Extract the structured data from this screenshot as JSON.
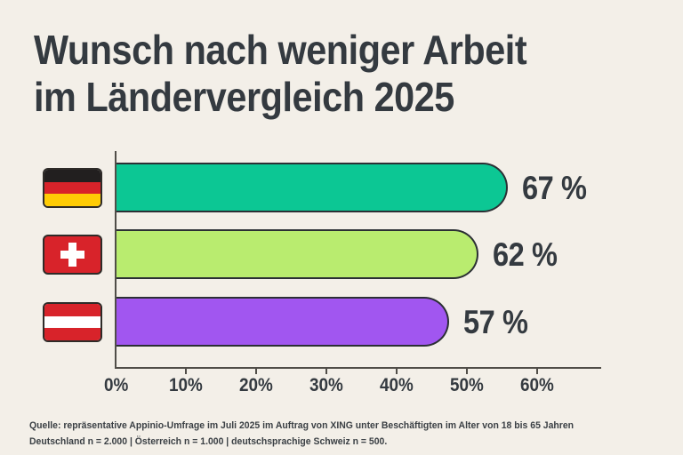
{
  "title": {
    "line1": "Wunsch nach weniger Arbeit",
    "line2": "im Ländervergleich 2025"
  },
  "chart_data": {
    "type": "bar",
    "orientation": "horizontal",
    "title": "Wunsch nach weniger Arbeit im Ländervergleich 2025",
    "categories": [
      "Deutschland",
      "Schweiz",
      "Österreich"
    ],
    "values": [
      67,
      62,
      57
    ],
    "unit": "%",
    "value_labels": [
      "67 %",
      "62 %",
      "57 %"
    ],
    "bar_colors": [
      "#0cc794",
      "#b9ec6f",
      "#a156f0"
    ],
    "x_ticks": [
      "0%",
      "10%",
      "20%",
      "30%",
      "40%",
      "50%",
      "60%"
    ],
    "x_tick_values": [
      0,
      10,
      20,
      30,
      40,
      50,
      60
    ],
    "xlim": [
      0,
      69
    ],
    "grid": false,
    "legend": false
  },
  "flags": [
    {
      "country": "Deutschland",
      "colors": [
        "#221f1f",
        "#d8232a",
        "#ffcc05"
      ]
    },
    {
      "country": "Schweiz",
      "colors": [
        "#d8232a",
        "#ffffff"
      ]
    },
    {
      "country": "Österreich",
      "colors": [
        "#d8232a",
        "#ffffff",
        "#d8232a"
      ]
    }
  ],
  "colors": {
    "background": "#f3efe8",
    "text": "#343a40",
    "axis": "#504d48",
    "bar_outline": "#2b2f34"
  },
  "source": {
    "line1": "Quelle: repräsentative Appinio-Umfrage im Juli 2025 im Auftrag von XING unter Beschäftigten im Alter von 18 bis 65 Jahren",
    "line2": "Deutschland n = 2.000 | Österreich n = 1.000 | deutschsprachige Schweiz n = 500."
  }
}
